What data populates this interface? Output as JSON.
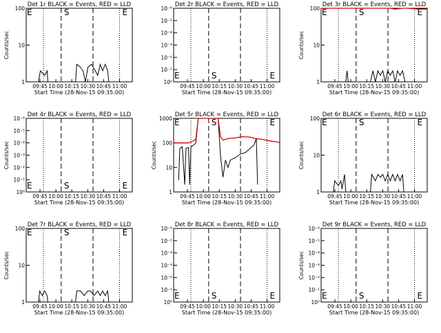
{
  "figure": {
    "background": "#ffffff",
    "events_color": "#000000",
    "lld_color": "#d40000"
  },
  "chart_data": [
    {
      "type": "line",
      "title": "Det 1r BLACK = Events, RED = LLD",
      "xlabel": "Start Time (28-Nov-15 09:35:00)",
      "ylabel": "Counts/sec",
      "x_tick_labels": [
        "09:45",
        "10:00",
        "10:15",
        "10:30",
        "10:45",
        "11:00"
      ],
      "y_scale": "log",
      "y_tick_labels": [
        "1",
        "10",
        "100"
      ],
      "markers": {
        "S": "S",
        "E": "E",
        "left_E": "E"
      },
      "series": [
        {
          "color": "#000000",
          "points": [
            [
              10,
              1
            ],
            [
              11.5,
              2
            ],
            [
              15,
              1.5
            ],
            [
              17,
              2
            ],
            [
              17.6,
              1
            ],
            [
              40,
              1
            ],
            [
              41,
              3
            ],
            [
              44,
              2.5
            ],
            [
              46,
              2
            ],
            [
              48,
              1
            ],
            [
              50,
              2.5
            ],
            [
              53,
              3
            ],
            [
              56,
              2
            ],
            [
              58,
              1.5
            ],
            [
              60,
              3
            ],
            [
              62,
              2
            ],
            [
              64,
              3
            ],
            [
              66,
              2
            ],
            [
              67,
              1
            ]
          ]
        }
      ]
    },
    {
      "type": "line",
      "title": "Det 2r BLACK = Events, RED = LLD",
      "xlabel": "Start Time (28-Nov-15 09:35:00)",
      "ylabel": "",
      "x_tick_labels": [
        "09:45",
        "10:00",
        "10:15",
        "10:30",
        "10:45",
        "11:00"
      ],
      "y_scale": "log",
      "y_tick_labels": [
        "10⁰",
        "10⁻¹",
        "10⁻²",
        "10⁻³",
        "10⁻⁴",
        "10⁻⁵",
        "10⁻⁶"
      ],
      "markers": {
        "S": "S",
        "E": "E",
        "left_E": "E"
      },
      "series": []
    },
    {
      "type": "line",
      "title": "Det 3r BLACK = Events, RED = LLD",
      "xlabel": "Start Time (28-Nov-15 09:35:00)",
      "ylabel": "Counts/sec",
      "x_tick_labels": [
        "09:45",
        "10:00",
        "10:15",
        "10:30",
        "10:45",
        "11:00"
      ],
      "y_scale": "log",
      "y_tick_labels": [
        "1",
        "10",
        "100"
      ],
      "markers": {
        "S": "S",
        "E": "E",
        "left_E": "E"
      },
      "series": [
        {
          "color": "#000000",
          "points": [
            [
              20,
              1
            ],
            [
              21,
              2
            ],
            [
              22,
              1
            ],
            [
              40,
              1
            ],
            [
              42,
              2
            ],
            [
              44,
              1
            ],
            [
              46,
              2
            ],
            [
              48,
              1.5
            ],
            [
              50,
              2
            ],
            [
              52,
              1
            ],
            [
              54,
              2
            ],
            [
              56,
              1.5
            ],
            [
              58,
              2
            ],
            [
              60,
              1
            ],
            [
              62,
              2
            ],
            [
              64,
              1.5
            ],
            [
              66,
              2
            ],
            [
              68,
              1
            ]
          ]
        },
        {
          "color": "#d40000",
          "points": [
            [
              0,
              100
            ],
            [
              3,
              100
            ],
            [
              8,
              100
            ],
            [
              56,
              100
            ],
            [
              60,
              95
            ],
            [
              66,
              110
            ],
            [
              70,
              100
            ],
            [
              78,
              95
            ],
            [
              86,
              95
            ]
          ]
        }
      ]
    },
    {
      "type": "line",
      "title": "Det 4r BLACK = Events, RED = LLD",
      "xlabel": "Start Time (28-Nov-15 09:35:00)",
      "ylabel": "Counts/sec",
      "x_tick_labels": [
        "09:45",
        "10:00",
        "10:15",
        "10:30",
        "10:45",
        "11:00"
      ],
      "y_scale": "log",
      "y_tick_labels": [
        "10⁰",
        "10⁻¹",
        "10⁻²",
        "10⁻³",
        "10⁻⁴",
        "10⁻⁵",
        "10⁻⁶"
      ],
      "markers": {
        "S": "S",
        "E": "E",
        "left_E": "E"
      },
      "series": []
    },
    {
      "type": "line",
      "title": "Det 5r BLACK = Events, RED = LLD",
      "xlabel": "Start Time (28-Nov-15 09:35:00)",
      "ylabel": "Counts/sec",
      "x_tick_labels": [
        "09:45",
        "10:00",
        "10:15",
        "10:30",
        "10:45",
        "11:00"
      ],
      "y_scale": "log",
      "y_tick_labels": [
        "1",
        "10",
        "100",
        "1000"
      ],
      "markers": {
        "S": "S",
        "E": "E",
        "left_E": "E"
      },
      "series": [
        {
          "color": "#000000",
          "points": [
            [
              4,
              3
            ],
            [
              5,
              60
            ],
            [
              7,
              70
            ],
            [
              9,
              2
            ],
            [
              10,
              60
            ],
            [
              12,
              65
            ],
            [
              13,
              2
            ],
            [
              14,
              70
            ],
            [
              16,
              80
            ],
            [
              18,
              100
            ],
            [
              20,
              1000
            ],
            [
              36,
              1000
            ],
            [
              38,
              30
            ],
            [
              40,
              4
            ],
            [
              42,
              20
            ],
            [
              44,
              10
            ],
            [
              46,
              20
            ],
            [
              50,
              25
            ],
            [
              54,
              35
            ],
            [
              58,
              40
            ],
            [
              62,
              60
            ],
            [
              65,
              80
            ],
            [
              67,
              150
            ],
            [
              68,
              2
            ]
          ]
        },
        {
          "color": "#d40000",
          "points": [
            [
              0,
              100
            ],
            [
              6,
              100
            ],
            [
              12,
              100
            ],
            [
              16,
              120
            ],
            [
              18,
              140
            ],
            [
              20,
              1000
            ],
            [
              36,
              1000
            ],
            [
              38,
              180
            ],
            [
              40,
              130
            ],
            [
              44,
              150
            ],
            [
              50,
              160
            ],
            [
              56,
              180
            ],
            [
              62,
              170
            ],
            [
              66,
              150
            ],
            [
              72,
              140
            ],
            [
              78,
              120
            ],
            [
              84,
              110
            ],
            [
              86,
              100
            ]
          ]
        }
      ]
    },
    {
      "type": "line",
      "title": "Det 6r BLACK = Events, RED = LLD",
      "xlabel": "Start Time (28-Nov-15 09:35:00)",
      "ylabel": "Counts/sec",
      "x_tick_labels": [
        "09:45",
        "10:00",
        "10:15",
        "10:30",
        "10:45",
        "11:00"
      ],
      "y_scale": "log",
      "y_tick_labels": [
        "1",
        "10",
        "100"
      ],
      "markers": {
        "S": "S",
        "E": "E",
        "left_E": "E"
      },
      "series": [
        {
          "color": "#000000",
          "points": [
            [
              10,
              1
            ],
            [
              11,
              2
            ],
            [
              14,
              1.5
            ],
            [
              16,
              2
            ],
            [
              17,
              1.2
            ],
            [
              19,
              3
            ],
            [
              20,
              1
            ],
            [
              40,
              1
            ],
            [
              41,
              3
            ],
            [
              44,
              2
            ],
            [
              46,
              3
            ],
            [
              48,
              2.5
            ],
            [
              50,
              3
            ],
            [
              52,
              2
            ],
            [
              54,
              3
            ],
            [
              56,
              2
            ],
            [
              58,
              3
            ],
            [
              60,
              2
            ],
            [
              62,
              3
            ],
            [
              64,
              2
            ],
            [
              66,
              3
            ],
            [
              67,
              1
            ]
          ]
        }
      ]
    },
    {
      "type": "line",
      "title": "Det 7r BLACK = Events, RED = LLD",
      "xlabel": "Start Time (28-Nov-15 09:35:00)",
      "ylabel": "Counts/sec",
      "x_tick_labels": [
        "09:45",
        "10:00",
        "10:15",
        "10:30",
        "10:45",
        "11:00"
      ],
      "y_scale": "log",
      "y_tick_labels": [
        "1",
        "10",
        "100"
      ],
      "markers": {
        "S": "S",
        "E": "E",
        "left_E": "E"
      },
      "series": [
        {
          "color": "#000000",
          "points": [
            [
              10,
              1
            ],
            [
              11,
              2
            ],
            [
              13,
              1.5
            ],
            [
              15,
              2
            ],
            [
              17,
              1.5
            ],
            [
              17.5,
              1
            ],
            [
              40,
              1
            ],
            [
              41,
              2
            ],
            [
              44,
              2
            ],
            [
              47,
              1.5
            ],
            [
              50,
              2
            ],
            [
              52,
              2
            ],
            [
              55,
              1.5
            ],
            [
              58,
              2
            ],
            [
              60,
              1.5
            ],
            [
              62,
              2
            ],
            [
              64,
              1.5
            ],
            [
              66,
              2
            ],
            [
              67,
              1
            ]
          ]
        }
      ]
    },
    {
      "type": "line",
      "title": "Det 8r BLACK = Events, RED = LLD",
      "xlabel": "Start Time (28-Nov-15 09:35:00)",
      "ylabel": "",
      "x_tick_labels": [
        "09:45",
        "10:00",
        "10:15",
        "10:30",
        "10:45",
        "11:00"
      ],
      "y_scale": "log",
      "y_tick_labels": [
        "10⁰",
        "10⁻¹",
        "10⁻²",
        "10⁻³",
        "10⁻⁴",
        "10⁻⁵",
        "10⁻⁶"
      ],
      "markers": {
        "S": "S",
        "E": "E",
        "left_E": "E"
      },
      "series": []
    },
    {
      "type": "line",
      "title": "Det 9r BLACK = Events, RED = LLD",
      "xlabel": "Start Time (28-Nov-15 09:35:00)",
      "ylabel": "Counts/sec",
      "x_tick_labels": [
        "09:45",
        "10:00",
        "10:15",
        "10:30",
        "10:45",
        "11:00"
      ],
      "y_scale": "log",
      "y_tick_labels": [
        "10⁰",
        "10⁻¹",
        "10⁻²",
        "10⁻³",
        "10⁻⁴",
        "10⁻⁵",
        "10⁻⁶"
      ],
      "markers": {
        "S": "S",
        "E": "E",
        "left_E": "E"
      },
      "series": []
    }
  ]
}
